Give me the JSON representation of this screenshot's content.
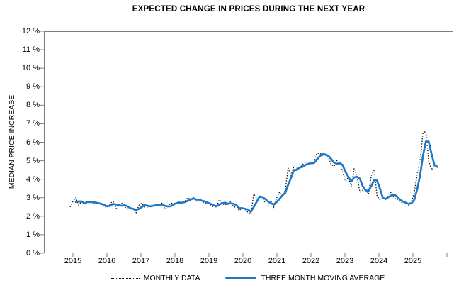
{
  "title": "EXPECTED CHANGE IN PRICES DURING THE NEXT YEAR",
  "y_axis": {
    "label": "MEDIAN PRICE INCREASE",
    "tick_labels": [
      "12 %",
      "11 %",
      "10 %",
      "9 %",
      "8 %",
      "7 %",
      "6 %",
      "5 %",
      "4 %",
      "3 %",
      "2 %",
      "1 %",
      "0 %"
    ]
  },
  "x_axis": {
    "tick_labels": [
      "2015",
      "2016",
      "2017",
      "2018",
      "2019",
      "2020",
      "2021",
      "2022",
      "2023",
      "2024",
      "2025"
    ]
  },
  "legend": {
    "items": [
      {
        "label": "MONTHLY DATA",
        "style": "dotted",
        "color": "#111111"
      },
      {
        "label": "THREE MONTH MOVING AVERAGE",
        "style": "solid",
        "color": "#1E78C8"
      }
    ]
  },
  "colors": {
    "moving_average_line": "#1E78C8",
    "monthly_line": "#111111",
    "axis_frame": "#7d7d7d"
  },
  "chart_data": {
    "type": "line",
    "title": "EXPECTED CHANGE IN PRICES DURING THE NEXT YEAR",
    "xlabel": "",
    "ylabel": "MEDIAN PRICE INCREASE",
    "ylim": [
      0,
      12
    ],
    "y_tick_step_percent": 1,
    "grid": false,
    "legend_position": "bottom",
    "x_start_month": "2015-01",
    "x_end_month": "2025-09",
    "x_tick_labels": [
      "2015",
      "2016",
      "2017",
      "2018",
      "2019",
      "2020",
      "2021",
      "2022",
      "2023",
      "2024",
      "2025"
    ],
    "series": [
      {
        "name": "MONTHLY DATA",
        "style": "dotted",
        "color": "#111111",
        "unit": "percent",
        "values": [
          2.5,
          2.8,
          3.0,
          2.6,
          2.8,
          2.7,
          2.8,
          2.8,
          2.7,
          2.7,
          2.7,
          2.6,
          2.5,
          2.5,
          2.7,
          2.8,
          2.4,
          2.6,
          2.7,
          2.5,
          2.4,
          2.4,
          2.4,
          2.2,
          2.6,
          2.7,
          2.5,
          2.5,
          2.6,
          2.6,
          2.6,
          2.6,
          2.7,
          2.4,
          2.5,
          2.7,
          2.7,
          2.7,
          2.8,
          2.7,
          2.8,
          3.0,
          2.9,
          3.0,
          2.8,
          2.9,
          2.8,
          2.7,
          2.7,
          2.6,
          2.5,
          2.5,
          2.9,
          2.7,
          2.6,
          2.7,
          2.8,
          2.5,
          2.5,
          2.3,
          2.5,
          2.4,
          2.2,
          2.1,
          3.2,
          3.0,
          3.0,
          3.1,
          2.7,
          2.6,
          2.8,
          2.5,
          3.0,
          3.3,
          3.1,
          3.4,
          4.6,
          4.2,
          4.7,
          4.6,
          4.6,
          4.8,
          4.9,
          4.8,
          4.9,
          4.9,
          5.4,
          5.4,
          5.3,
          5.3,
          5.2,
          4.8,
          4.7,
          5.0,
          4.9,
          4.4,
          3.9,
          4.1,
          3.6,
          4.6,
          4.2,
          3.3,
          3.4,
          3.5,
          3.2,
          4.2,
          4.5,
          3.1,
          2.9,
          3.0,
          2.9,
          3.2,
          3.3,
          3.0,
          2.9,
          2.8,
          2.7,
          2.7,
          2.6,
          2.8,
          3.3,
          4.3,
          5.0,
          6.5,
          6.6,
          5.0,
          4.5,
          4.8,
          4.7
        ]
      },
      {
        "name": "THREE MONTH MOVING AVERAGE",
        "style": "solid",
        "color": "#1E78C8",
        "unit": "percent",
        "derivation": "trailing_3_month_average_of_series_0"
      }
    ]
  }
}
